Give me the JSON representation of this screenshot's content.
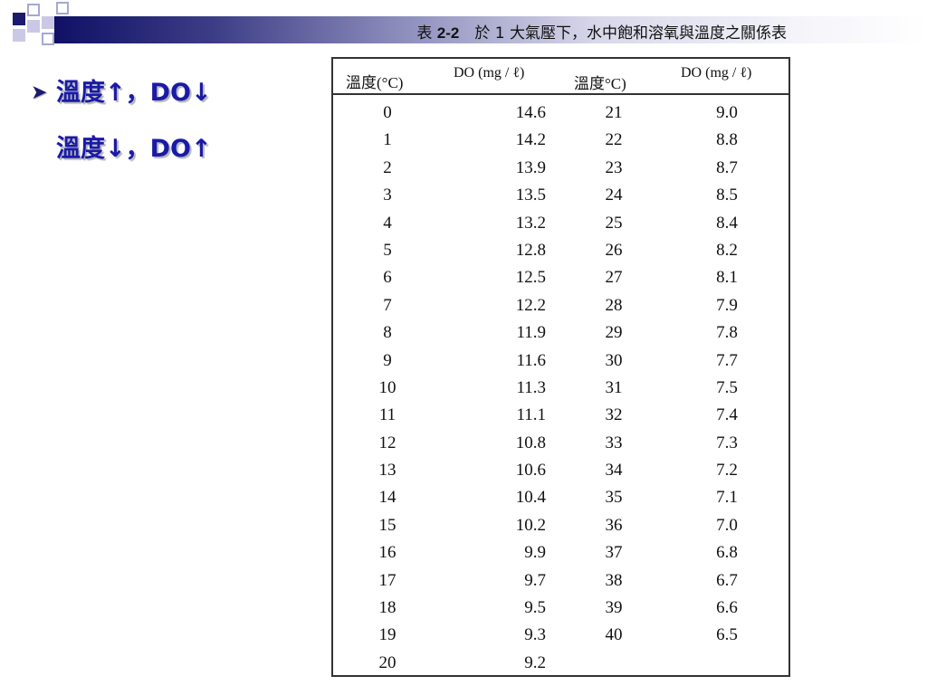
{
  "title": {
    "prefix": "表 ",
    "table_no": "2-2",
    "text": "　於 1 大氣壓下，水中飽和溶氧與溫度之關係表"
  },
  "bullets": [
    "溫度↑，DO↓",
    "溫度↓，DO↑"
  ],
  "table": {
    "headers": [
      "溫度(°C)",
      "DO (mg / ℓ)",
      "溫度°C)",
      "DO (mg / ℓ)"
    ],
    "rows": [
      [
        "0",
        "14.6",
        "21",
        "9.0"
      ],
      [
        "1",
        "14.2",
        "22",
        "8.8"
      ],
      [
        "2",
        "13.9",
        "23",
        "8.7"
      ],
      [
        "3",
        "13.5",
        "24",
        "8.5"
      ],
      [
        "4",
        "13.2",
        "25",
        "8.4"
      ],
      [
        "5",
        "12.8",
        "26",
        "8.2"
      ],
      [
        "6",
        "12.5",
        "27",
        "8.1"
      ],
      [
        "7",
        "12.2",
        "28",
        "7.9"
      ],
      [
        "8",
        "11.9",
        "29",
        "7.8"
      ],
      [
        "9",
        "11.6",
        "30",
        "7.7"
      ],
      [
        "10",
        "11.3",
        "31",
        "7.5"
      ],
      [
        "11",
        "11.1",
        "32",
        "7.4"
      ],
      [
        "12",
        "10.8",
        "33",
        "7.3"
      ],
      [
        "13",
        "10.6",
        "34",
        "7.2"
      ],
      [
        "14",
        "10.4",
        "35",
        "7.1"
      ],
      [
        "15",
        "10.2",
        "36",
        "7.0"
      ],
      [
        "16",
        "9.9",
        "37",
        "6.8"
      ],
      [
        "17",
        "9.7",
        "38",
        "6.7"
      ],
      [
        "18",
        "9.5",
        "39",
        "6.6"
      ],
      [
        "19",
        "9.3",
        "40",
        "6.5"
      ],
      [
        "20",
        "9.2",
        "",
        ""
      ]
    ]
  },
  "colors": {
    "accent": "#1a1a6e",
    "bullet_text": "#1a1aa8"
  },
  "icons": {
    "bullet": "arrow-bullet-icon"
  }
}
